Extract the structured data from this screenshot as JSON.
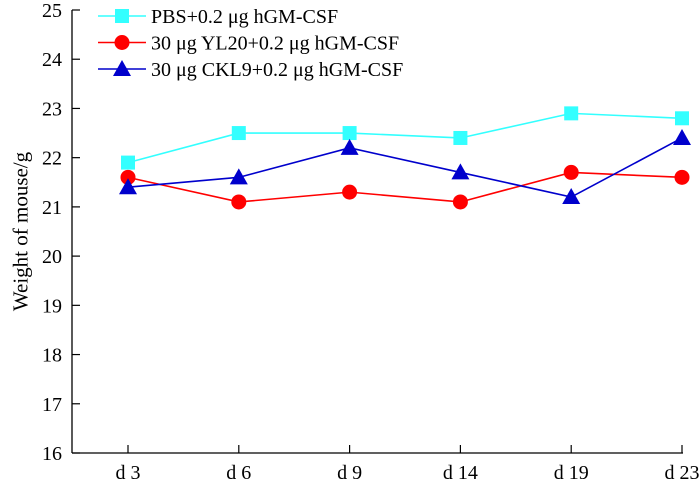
{
  "chart_data": {
    "type": "line",
    "title": "",
    "xlabel": "",
    "ylabel": "Weight of mouse/g",
    "categories": [
      "d 3",
      "d 6",
      "d 9",
      "d 14",
      "d 19",
      "d 23"
    ],
    "ylim": [
      16,
      25
    ],
    "yticks": [
      16,
      17,
      18,
      19,
      20,
      21,
      22,
      23,
      24,
      25
    ],
    "grid": false,
    "legend_position": "top-left",
    "series": [
      {
        "name": "PBS+0.2 μg hGM-CSF",
        "marker": "square",
        "color": "#33ffff",
        "values": [
          21.9,
          22.5,
          22.5,
          22.4,
          22.9,
          22.8
        ]
      },
      {
        "name": "30 μg YL20+0.2 μg hGM-CSF",
        "marker": "circle",
        "color": "#ff0000",
        "values": [
          21.6,
          21.1,
          21.3,
          21.1,
          21.7,
          21.6
        ]
      },
      {
        "name": "30 μg CKL9+0.2 μg hGM-CSF",
        "marker": "triangle",
        "color": "#0000cc",
        "values": [
          21.4,
          21.6,
          22.2,
          21.7,
          21.2,
          22.4
        ]
      }
    ]
  }
}
